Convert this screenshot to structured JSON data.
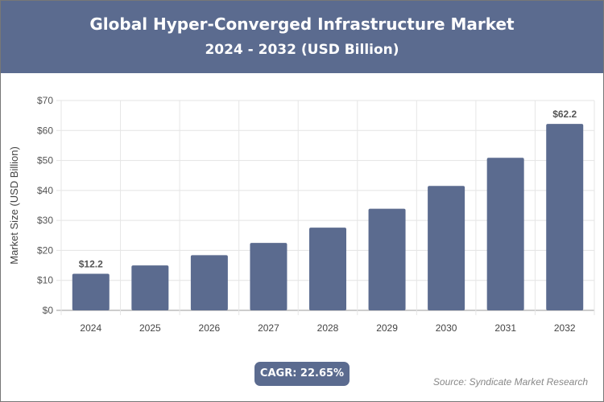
{
  "header": {
    "title": "Global Hyper-Converged Infrastructure Market",
    "subtitle": "2024 - 2032 (USD Billion)"
  },
  "chart_data": {
    "type": "bar",
    "title": "Global Hyper-Converged Infrastructure Market",
    "subtitle": "2024 - 2032 (USD Billion)",
    "ylabel": "Market Size (USD Billion)",
    "xlabel": "",
    "categories": [
      "2024",
      "2025",
      "2026",
      "2027",
      "2028",
      "2029",
      "2030",
      "2031",
      "2032"
    ],
    "values": [
      12.2,
      15.0,
      18.4,
      22.5,
      27.6,
      33.9,
      41.5,
      50.9,
      62.2
    ],
    "data_labels": {
      "0": "$12.2",
      "8": "$62.2"
    },
    "ylim": [
      0,
      70
    ],
    "yticks": [
      "$0",
      "$10",
      "$20",
      "$30",
      "$40",
      "$50",
      "$60",
      "$70"
    ],
    "grid": true,
    "bar_color": "#5b6b8f"
  },
  "footer": {
    "cagr": "CAGR: 22.65%",
    "source": "Source: Syndicate Market Research"
  }
}
